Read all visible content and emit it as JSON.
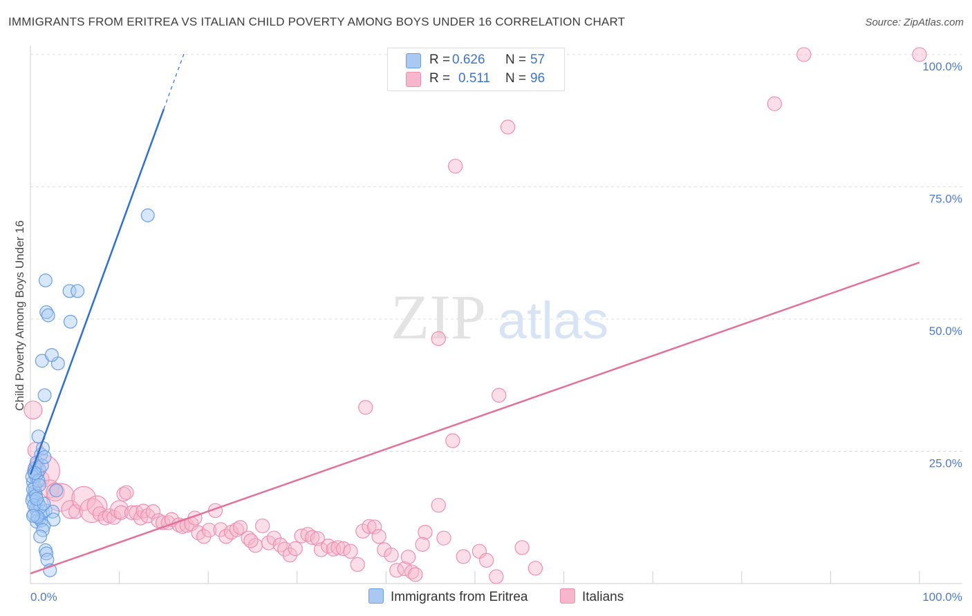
{
  "title": "IMMIGRANTS FROM ERITREA VS ITALIAN CHILD POVERTY AMONG BOYS UNDER 16 CORRELATION CHART",
  "source": "Source: ZipAtlas.com",
  "watermark": {
    "zip": "ZIP",
    "atlas": "atlas"
  },
  "colors": {
    "blue_fill": "#a9c9f3",
    "blue_stroke": "#6a9ee4",
    "blue_line": "#2f6fd1",
    "pink_fill": "#f7b6cb",
    "pink_stroke": "#ec8fae",
    "pink_line": "#e3709b",
    "tick_text": "#4a7bd0",
    "grid": "#dddddd"
  },
  "legend": {
    "rows": [
      {
        "r_label": "R =",
        "r_value": "0.626",
        "n_label": "N =",
        "n_value": "57"
      },
      {
        "r_label": "R =",
        "r_value": "0.511",
        "n_label": "N =",
        "n_value": "96"
      }
    ]
  },
  "bottom_legend": [
    {
      "label": "Immigrants from Eritrea"
    },
    {
      "label": "Italians"
    }
  ],
  "chart_data": {
    "type": "scatter",
    "title": "IMMIGRANTS FROM ERITREA VS ITALIAN CHILD POVERTY AMONG BOYS UNDER 16 CORRELATION CHART",
    "xlabel": "",
    "ylabel": "Child Poverty Among Boys Under 16",
    "xlim": [
      0,
      100
    ],
    "ylim": [
      0,
      100
    ],
    "x_tick_labels": [
      "0.0%",
      "100.0%"
    ],
    "y_ticks": [
      {
        "value": 25,
        "label": "25.0%"
      },
      {
        "value": 50,
        "label": "50.0%"
      },
      {
        "value": 75,
        "label": "75.0%"
      },
      {
        "value": 100,
        "label": "100.0%"
      }
    ],
    "grid": true,
    "series": [
      {
        "name": "Immigrants from Eritrea",
        "R": 0.626,
        "N": 57,
        "trend": {
          "x0": 0,
          "y0": 20.6,
          "x1": 15,
          "y1": 89.7,
          "dashed_to_x": 17.3
        },
        "points": [
          [
            0.5,
            17.4,
            1.3
          ],
          [
            0.3,
            16.3,
            1.3
          ],
          [
            0.9,
            15.2,
            1.3
          ],
          [
            1.0,
            12.3,
            1.3
          ],
          [
            0.4,
            13.1,
            1.3
          ],
          [
            0.7,
            11.7,
            1.3
          ],
          [
            1.2,
            11.9,
            1.3
          ],
          [
            0.2,
            15.7,
            1.3
          ],
          [
            0.6,
            14.1,
            1.3
          ],
          [
            1.4,
            13.5,
            1.3
          ],
          [
            1.7,
            13.8,
            1.3
          ],
          [
            2.5,
            13.6,
            1.3
          ],
          [
            2.6,
            12.1,
            1.3
          ],
          [
            1.5,
            10.9,
            1.3
          ],
          [
            1.4,
            10.1,
            1.3
          ],
          [
            1.1,
            8.9,
            1.3
          ],
          [
            1.7,
            6.3,
            1.3
          ],
          [
            1.8,
            5.7,
            1.3
          ],
          [
            1.9,
            4.5,
            1.3
          ],
          [
            2.2,
            2.5,
            1.3
          ],
          [
            0.5,
            18.3,
            1.3
          ],
          [
            0.3,
            19.2,
            1.3
          ],
          [
            0.6,
            20.3,
            1.3
          ],
          [
            0.8,
            20.8,
            1.3
          ],
          [
            0.4,
            21.2,
            1.3
          ],
          [
            1.0,
            21.5,
            1.3
          ],
          [
            0.5,
            21.8,
            1.3
          ],
          [
            0.7,
            22.9,
            1.3
          ],
          [
            1.2,
            24.4,
            1.3
          ],
          [
            1.4,
            25.6,
            1.3
          ],
          [
            0.9,
            27.8,
            1.3
          ],
          [
            1.6,
            35.6,
            1.3
          ],
          [
            1.3,
            42.1,
            1.3
          ],
          [
            3.1,
            41.6,
            1.3
          ],
          [
            2.4,
            43.2,
            1.3
          ],
          [
            1.8,
            51.3,
            1.3
          ],
          [
            2.0,
            50.7,
            1.3
          ],
          [
            4.5,
            49.5,
            1.3
          ],
          [
            1.7,
            57.3,
            1.3
          ],
          [
            4.4,
            55.3,
            1.3
          ],
          [
            5.3,
            55.3,
            1.3
          ],
          [
            13.2,
            69.6,
            1.3
          ],
          [
            0.3,
            17.8,
            1.3
          ],
          [
            0.6,
            16.6,
            1.3
          ],
          [
            1.1,
            14.5,
            1.3
          ],
          [
            0.8,
            12.6,
            1.3
          ],
          [
            0.2,
            20.2,
            1.3
          ],
          [
            0.9,
            19.4,
            1.3
          ],
          [
            1.3,
            22.3,
            1.3
          ],
          [
            0.4,
            14.8,
            1.3
          ],
          [
            1.5,
            15.1,
            1.3
          ],
          [
            0.3,
            12.8,
            1.3
          ],
          [
            1.0,
            18.6,
            1.3
          ],
          [
            0.7,
            16.0,
            1.3
          ],
          [
            2.9,
            17.6,
            1.3
          ],
          [
            1.6,
            23.9,
            1.3
          ],
          [
            0.5,
            20.9,
            1.3
          ]
        ]
      },
      {
        "name": "Italians",
        "R": 0.511,
        "N": 96,
        "trend": {
          "x0": 0,
          "y0": 1.9,
          "x1": 100,
          "y1": 60.7
        },
        "points": [
          [
            0.3,
            32.8,
            1.8
          ],
          [
            0.6,
            25.2,
            1.6
          ],
          [
            0.8,
            21.6,
            1.6
          ],
          [
            1.2,
            19.8,
            1.6
          ],
          [
            1.5,
            21.3,
            3.2
          ],
          [
            2.2,
            17.9,
            1.8
          ],
          [
            2.8,
            17.3,
            1.8
          ],
          [
            3.4,
            16.3,
            2.8
          ],
          [
            4.5,
            14.0,
            1.8
          ],
          [
            5.1,
            13.6,
            1.4
          ],
          [
            6.0,
            16.1,
            2.4
          ],
          [
            6.9,
            13.8,
            2.4
          ],
          [
            7.5,
            14.7,
            2.0
          ],
          [
            7.8,
            13.2,
            1.4
          ],
          [
            8.4,
            12.4,
            1.4
          ],
          [
            8.9,
            12.8,
            1.4
          ],
          [
            9.4,
            12.5,
            1.4
          ],
          [
            10.0,
            14.0,
            1.8
          ],
          [
            10.2,
            13.4,
            1.4
          ],
          [
            10.5,
            16.9,
            1.4
          ],
          [
            10.8,
            17.2,
            1.4
          ],
          [
            11.4,
            13.4,
            1.4
          ],
          [
            11.9,
            13.4,
            1.4
          ],
          [
            12.4,
            12.4,
            1.4
          ],
          [
            12.7,
            13.7,
            1.4
          ],
          [
            13.2,
            12.8,
            1.4
          ],
          [
            13.8,
            13.6,
            1.4
          ],
          [
            14.4,
            11.9,
            1.4
          ],
          [
            14.9,
            11.5,
            1.4
          ],
          [
            15.5,
            11.5,
            1.4
          ],
          [
            15.9,
            12.1,
            1.4
          ],
          [
            16.7,
            11.1,
            1.4
          ],
          [
            17.1,
            10.8,
            1.4
          ],
          [
            17.6,
            11.0,
            1.4
          ],
          [
            18.1,
            11.3,
            1.4
          ],
          [
            18.5,
            12.4,
            1.4
          ],
          [
            18.9,
            9.6,
            1.4
          ],
          [
            19.5,
            8.9,
            1.4
          ],
          [
            20.1,
            10.1,
            1.4
          ],
          [
            20.8,
            13.8,
            1.4
          ],
          [
            21.4,
            10.2,
            1.4
          ],
          [
            22.0,
            8.9,
            1.4
          ],
          [
            22.6,
            9.7,
            1.4
          ],
          [
            23.2,
            10.2,
            1.4
          ],
          [
            23.6,
            10.6,
            1.4
          ],
          [
            24.5,
            8.6,
            1.4
          ],
          [
            25.3,
            7.2,
            1.4
          ],
          [
            24.8,
            8.1,
            1.4
          ],
          [
            26.1,
            10.9,
            1.4
          ],
          [
            26.8,
            7.7,
            1.4
          ],
          [
            27.4,
            8.6,
            1.4
          ],
          [
            28.1,
            7.3,
            1.4
          ],
          [
            28.6,
            6.5,
            1.4
          ],
          [
            29.2,
            5.4,
            1.4
          ],
          [
            29.8,
            6.6,
            1.4
          ],
          [
            30.5,
            9.0,
            1.4
          ],
          [
            31.2,
            9.3,
            1.4
          ],
          [
            31.7,
            8.7,
            1.4
          ],
          [
            32.3,
            8.5,
            1.4
          ],
          [
            32.7,
            6.4,
            1.4
          ],
          [
            33.5,
            7.1,
            1.4
          ],
          [
            34.1,
            6.5,
            1.4
          ],
          [
            34.6,
            6.8,
            1.4
          ],
          [
            35.2,
            6.6,
            1.4
          ],
          [
            36.0,
            6.1,
            1.4
          ],
          [
            36.8,
            3.6,
            1.4
          ],
          [
            37.4,
            9.9,
            1.4
          ],
          [
            38.1,
            10.8,
            1.4
          ],
          [
            38.7,
            10.7,
            1.4
          ],
          [
            39.2,
            8.9,
            1.4
          ],
          [
            39.8,
            6.4,
            1.4
          ],
          [
            40.6,
            5.4,
            1.4
          ],
          [
            41.2,
            2.5,
            1.4
          ],
          [
            42.1,
            2.8,
            1.4
          ],
          [
            42.5,
            5.0,
            1.4
          ],
          [
            42.9,
            2.2,
            1.4
          ],
          [
            43.3,
            1.7,
            1.4
          ],
          [
            44.4,
            9.7,
            1.4
          ],
          [
            45.9,
            14.8,
            1.4
          ],
          [
            47.5,
            27.0,
            1.4
          ],
          [
            45.9,
            46.3,
            1.4
          ],
          [
            47.8,
            78.9,
            1.4
          ],
          [
            37.7,
            33.3,
            1.4
          ],
          [
            46.5,
            8.6,
            1.4
          ],
          [
            48.7,
            5.1,
            1.4
          ],
          [
            50.5,
            6.1,
            1.4
          ],
          [
            51.3,
            4.4,
            1.4
          ],
          [
            52.4,
            1.3,
            1.4
          ],
          [
            52.7,
            35.6,
            1.4
          ],
          [
            53.7,
            86.3,
            1.4
          ],
          [
            56.8,
            2.9,
            1.4
          ],
          [
            55.3,
            6.8,
            1.4
          ],
          [
            83.7,
            90.7,
            1.4
          ],
          [
            87.0,
            100.0,
            1.4
          ],
          [
            100.0,
            100.0,
            1.4
          ],
          [
            44.1,
            7.4,
            1.4
          ]
        ]
      }
    ]
  }
}
